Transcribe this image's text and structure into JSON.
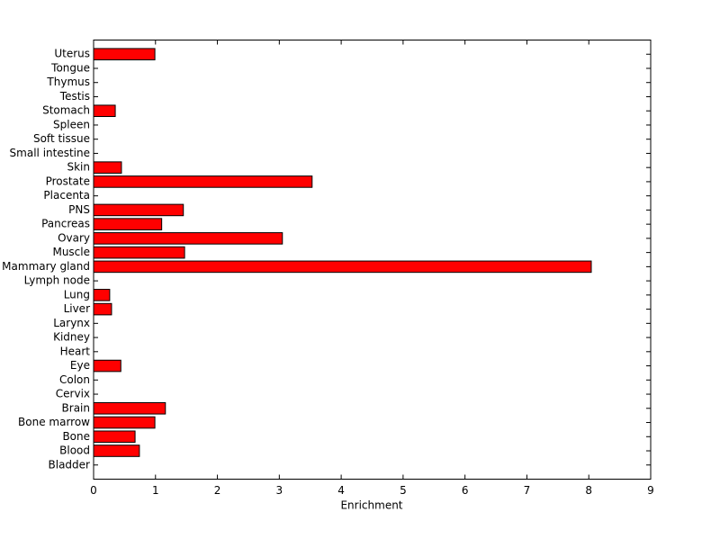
{
  "chart_data": {
    "type": "barh",
    "xlabel": "Enrichment",
    "categories": [
      "Bladder",
      "Blood",
      "Bone",
      "Bone marrow",
      "Brain",
      "Cervix",
      "Colon",
      "Eye",
      "Heart",
      "Kidney",
      "Larynx",
      "Liver",
      "Lung",
      "Lymph node",
      "Mammary gland",
      "Muscle",
      "Ovary",
      "Pancreas",
      "PNS",
      "Placenta",
      "Prostate",
      "Skin",
      "Small intestine",
      "Soft tissue",
      "Spleen",
      "Stomach",
      "Testis",
      "Thymus",
      "Tongue",
      "Uterus"
    ],
    "values": [
      0,
      0.74,
      0.67,
      0.99,
      1.16,
      0,
      0,
      0.44,
      0,
      0,
      0,
      0.29,
      0.26,
      0,
      8.04,
      1.47,
      3.05,
      1.1,
      1.45,
      0,
      3.53,
      0.45,
      0,
      0,
      0,
      0.35,
      0,
      0,
      0,
      0.99
    ],
    "color": "#ff0000",
    "xlim": [
      0,
      9
    ],
    "xticks": [
      0,
      1,
      2,
      3,
      4,
      5,
      6,
      7,
      8,
      9
    ]
  }
}
